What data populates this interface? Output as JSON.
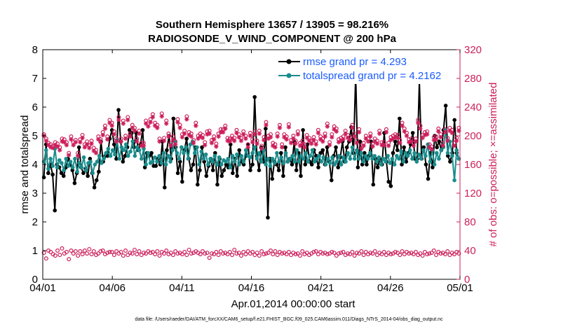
{
  "chart_data": {
    "type": "line",
    "title": "Southern Hemisphere 13657 / 13905 = 98.216%",
    "subtitle": "RADIOSONDE_V_WIND_COMPONENT @ 200 hPa",
    "xlabel": "Apr.01,2014 00:00:00 start",
    "ylabel": "rmse and totalspread",
    "ylabel_right": "# of obs: o=possible; ×=assimilated",
    "x_ticks": [
      "04/01",
      "04/06",
      "04/11",
      "04/16",
      "04/21",
      "04/26",
      "05/01"
    ],
    "ylim": [
      0,
      8
    ],
    "y_ticks": [
      "0",
      "1",
      "2",
      "3",
      "4",
      "5",
      "6",
      "7",
      "8"
    ],
    "ylim_right": [
      0,
      320
    ],
    "y_ticks_right": [
      "0",
      "40",
      "80",
      "120",
      "160",
      "200",
      "240",
      "280",
      "320"
    ],
    "xlim_days": [
      0,
      30
    ],
    "legend": [
      "rmse grand pr = 4.293",
      "totalspread grand pr = 4.2162"
    ],
    "series": [
      {
        "name": "rmse",
        "color": "#000000",
        "values": [
          3.55,
          4.7,
          3.7,
          4.0,
          3.65,
          2.4,
          4.0,
          3.9,
          3.7,
          3.6,
          3.9,
          4.2,
          4.0,
          3.8,
          3.35,
          3.7,
          4.6,
          3.9,
          3.7,
          3.85,
          3.6,
          4.2,
          3.7,
          3.2,
          3.45,
          3.75,
          4.8,
          4.1,
          4.3,
          4.3,
          4.9,
          5.2,
          4.7,
          4.2,
          5.9,
          4.8,
          4.1,
          4.3,
          4.6,
          5.2,
          5.1,
          4.6,
          5.1,
          4.5,
          4.7,
          5.2,
          3.9,
          4.4,
          4.3,
          4.4,
          3.95,
          3.95,
          4.2,
          4.0,
          4.8,
          3.2,
          4.5,
          5.0,
          4.2,
          5.6,
          4.6,
          3.7,
          4.1,
          3.4,
          4.5,
          4.9,
          4.2,
          3.8,
          4.0,
          4.6,
          3.3,
          3.8,
          4.6,
          4.1,
          3.6,
          3.95,
          4.2,
          3.8,
          4.4,
          3.3,
          4.2,
          3.6,
          3.8,
          4.0,
          3.9,
          4.7,
          3.7,
          4.2,
          3.6,
          4.5,
          4.1,
          4.0,
          4.3,
          4.7,
          3.8,
          4.0,
          6.35,
          4.3,
          3.8,
          4.6,
          4.1,
          5.25,
          2.15,
          4.2,
          3.5,
          4.1,
          4.0,
          3.8,
          4.4,
          3.6,
          4.6,
          4.1,
          4.2,
          4.0,
          4.8,
          3.8,
          4.4,
          3.6,
          5.2,
          4.0,
          4.7,
          4.1,
          4.0,
          4.5,
          4.3,
          3.9,
          4.4,
          4.5,
          4.0,
          4.6,
          4.1,
          3.45,
          4.3,
          4.6,
          3.9,
          4.25,
          4.8,
          4.1,
          4.6,
          4.8,
          5.3,
          4.4,
          7.15,
          3.9,
          4.8,
          4.0,
          4.4,
          4.0,
          4.3,
          4.8,
          3.3,
          4.2,
          3.9,
          4.2,
          4.0,
          5.1,
          4.1,
          3.4,
          3.25,
          4.4,
          4.8,
          4.5,
          5.6,
          4.0,
          4.6,
          4.1,
          4.4,
          4.7,
          5.1,
          4.2,
          4.2,
          6.9,
          4.2,
          4.6,
          4.0,
          3.5,
          4.4,
          3.9,
          5.0,
          4.6,
          4.8,
          4.5,
          5.2,
          6.05,
          4.3,
          4.1,
          4.4,
          5.55,
          4.4,
          4.2
        ],
        "marker": "filled-circle"
      },
      {
        "name": "totalspread",
        "color": "#1a8c8c",
        "values": [
          4.1,
          4.5,
          3.85,
          4.2,
          3.95,
          4.55,
          3.9,
          4.15,
          4.05,
          3.8,
          4.2,
          3.95,
          4.1,
          3.9,
          4.2,
          3.75,
          4.05,
          3.9,
          4.25,
          3.8,
          4.05,
          4.1,
          3.7,
          4.0,
          4.1,
          4.3,
          4.05,
          4.2,
          4.4,
          4.55,
          4.3,
          4.5,
          4.35,
          4.85,
          4.2,
          4.6,
          4.5,
          4.7,
          4.3,
          4.45,
          4.8,
          4.3,
          4.6,
          4.5,
          4.2,
          4.55,
          4.0,
          4.4,
          4.05,
          4.1,
          4.25,
          4.1,
          4.3,
          4.05,
          4.4,
          4.0,
          4.3,
          4.1,
          4.5,
          4.8,
          4.4,
          4.2,
          4.6,
          4.4,
          4.6,
          4.2,
          4.7,
          4.8,
          4.4,
          4.6,
          4.0,
          4.45,
          4.2,
          4.35,
          4.0,
          4.2,
          4.1,
          4.3,
          4.0,
          4.25,
          4.0,
          4.15,
          4.1,
          4.2,
          3.9,
          4.3,
          4.1,
          4.35,
          4.0,
          4.3,
          4.1,
          4.5,
          4.3,
          4.25,
          4.4,
          4.6,
          4.2,
          4.4,
          4.1,
          4.5,
          4.0,
          4.2,
          3.95,
          4.2,
          4.05,
          4.4,
          4.1,
          4.25,
          4.05,
          4.4,
          4.1,
          4.2,
          4.3,
          4.1,
          4.5,
          4.1,
          4.3,
          4.2,
          4.4,
          4.1,
          4.3,
          4.5,
          4.1,
          4.2,
          4.3,
          4.1,
          4.25,
          4.0,
          4.2,
          4.05,
          4.25,
          4.0,
          4.1,
          4.3,
          4.0,
          4.25,
          4.1,
          4.4,
          4.2,
          4.6,
          4.2,
          4.5,
          4.2,
          4.4,
          4.1,
          4.3,
          4.2,
          4.4,
          4.2,
          4.3,
          4.1,
          4.25,
          4.0,
          4.2,
          4.1,
          4.3,
          4.05,
          4.2,
          4.0,
          4.3,
          4.2,
          4.45,
          4.1,
          4.4,
          4.3,
          4.5,
          4.2,
          4.4,
          4.1,
          4.35,
          4.2,
          4.5,
          4.3,
          4.7,
          4.1,
          4.5,
          4.0,
          4.4,
          4.2,
          4.5,
          4.6,
          5.2,
          4.4,
          4.8,
          4.3,
          3.45,
          4.5,
          4.2
        ],
        "marker": "filled-circle"
      },
      {
        "name": "obs possible (o)",
        "axis": "right",
        "color": "#cc1f5b",
        "values": [
          37,
          29,
          40,
          38,
          35,
          33,
          40,
          34,
          43,
          36,
          38,
          28,
          40,
          36,
          39,
          33,
          39,
          35,
          40,
          36,
          42,
          35,
          39,
          34,
          36,
          39,
          40,
          35,
          37,
          38,
          38,
          34,
          39,
          36,
          38,
          33,
          40,
          34,
          37,
          36,
          41,
          35,
          39,
          34,
          37,
          36,
          39,
          37,
          38,
          35,
          39,
          33,
          38,
          36,
          40,
          35,
          37,
          34,
          39,
          36,
          37,
          35,
          38,
          34,
          41,
          36,
          37,
          39,
          37,
          35,
          39,
          36,
          37,
          30,
          36,
          35,
          38,
          34,
          39,
          36,
          37,
          35,
          38,
          34,
          41,
          36,
          37,
          33,
          38,
          35,
          39,
          36,
          38,
          34,
          37,
          33,
          39,
          35,
          36,
          37,
          40,
          35,
          39,
          34,
          38,
          36,
          37,
          35,
          38,
          34,
          37,
          35,
          36,
          33,
          39,
          35,
          37,
          34,
          36,
          38,
          39,
          35,
          38,
          36,
          37,
          35,
          36,
          38,
          37,
          33,
          36,
          37,
          38,
          34,
          36,
          35,
          38,
          33,
          37,
          36,
          39,
          34,
          38,
          35,
          37,
          36,
          39,
          34,
          37,
          35,
          38,
          34,
          37,
          35,
          36,
          38,
          37,
          34,
          39,
          35,
          38,
          36,
          37,
          35,
          38,
          34,
          36,
          33,
          38,
          35,
          36,
          37,
          40,
          34,
          38,
          36,
          37,
          35,
          39,
          34,
          37,
          35,
          38,
          36
        ],
        "marker": "open-circle"
      },
      {
        "name": "obs possible (o) upper",
        "axis": "right",
        "color": "#cc1f5b",
        "values": [
          202,
          196,
          190,
          188,
          186,
          191,
          189,
          184,
          196,
          195,
          191,
          176,
          199,
          191,
          194,
          176,
          195,
          201,
          188,
          192,
          187,
          193,
          183,
          180,
          199,
          195,
          205,
          214,
          199,
          222,
          218,
          206,
          196,
          226,
          196,
          221,
          200,
          226,
          203,
          215,
          211,
          196,
          207,
          190,
          190,
          221,
          217,
          223,
          230,
          218,
          215,
          196,
          231,
          197,
          221,
          203,
          190,
          199,
          192,
          223,
          215,
          202,
          207,
          227,
          205,
          203,
          194,
          218,
          200,
          203,
          201,
          191,
          206,
          207,
          194,
          199,
          189,
          203,
          209,
          209,
          214,
          197,
          196,
          200,
          197,
          208,
          202,
          197,
          206,
          200,
          188,
          204,
          195,
          206,
          193,
          207,
          186,
          198,
          219,
          200,
          202,
          190,
          188,
          203,
          215,
          188,
          202,
          199,
          216,
          194,
          200,
          193,
          206,
          190,
          193,
          188,
          201,
          197,
          193,
          198,
          192,
          208,
          199,
          196,
          203,
          217,
          191,
          202,
          213,
          210,
          195,
          197,
          199,
          207,
          201,
          198,
          215,
          203,
          194,
          209,
          186,
          190,
          200,
          196,
          203,
          189,
          196,
          193,
          207,
          191,
          191,
          209,
          190,
          198,
          200,
          202,
          201,
          194,
          218,
          210,
          204,
          195,
          196,
          190,
          196,
          222,
          214,
          201,
          205,
          206,
          188,
          185,
          198,
          199,
          210,
          202,
          190,
          209,
          197,
          211,
          208,
          190,
          197,
          211
        ],
        "marker": "open-circle"
      },
      {
        "name": "obs assimilated (×)",
        "axis": "right",
        "color": "#cc1f5b",
        "values": [
          200,
          193,
          187,
          184,
          183,
          187,
          185,
          180,
          192,
          191,
          187,
          173,
          195,
          187,
          191,
          172,
          191,
          197,
          184,
          188,
          183,
          189,
          179,
          176,
          195,
          191,
          201,
          210,
          195,
          218,
          214,
          202,
          192,
          222,
          192,
          217,
          196,
          222,
          199,
          211,
          207,
          192,
          203,
          186,
          186,
          217,
          213,
          219,
          226,
          214,
          211,
          192,
          227,
          193,
          217,
          199,
          186,
          195,
          188,
          219,
          211,
          198,
          203,
          223,
          201,
          199,
          190,
          214,
          196,
          199,
          197,
          187,
          202,
          203,
          190,
          195,
          185,
          199,
          205,
          205,
          210,
          193,
          192,
          196,
          193,
          204,
          198,
          193,
          202,
          196,
          184,
          200,
          191,
          202,
          189,
          203,
          182,
          194,
          215,
          196,
          198,
          186,
          184,
          199,
          211,
          184,
          198,
          195,
          212,
          190,
          196,
          189,
          202,
          186,
          189,
          184,
          197,
          193,
          189,
          194,
          188,
          204,
          195,
          192,
          199,
          213,
          187,
          198,
          209,
          206,
          191,
          193,
          195,
          203,
          197,
          194,
          211,
          199,
          190,
          205,
          182,
          186,
          196,
          192,
          199,
          185,
          192,
          189,
          203,
          187,
          187,
          205,
          186,
          194,
          196,
          198,
          197,
          190,
          214,
          206,
          200,
          191,
          192,
          186,
          192,
          218,
          210,
          197,
          201,
          202,
          184,
          181,
          194,
          195,
          206,
          198,
          186,
          205,
          193,
          207,
          204,
          186,
          193,
          207
        ],
        "marker": "asterisk"
      }
    ]
  },
  "footer": "data file: /Users/raeder/DAI/ATM_forcXX/CAM6_setup/f.e21.FHIST_BGC.f09_025.CAM6assim.011/Diags_NTrS_2014-04/obs_diag_output.nc"
}
